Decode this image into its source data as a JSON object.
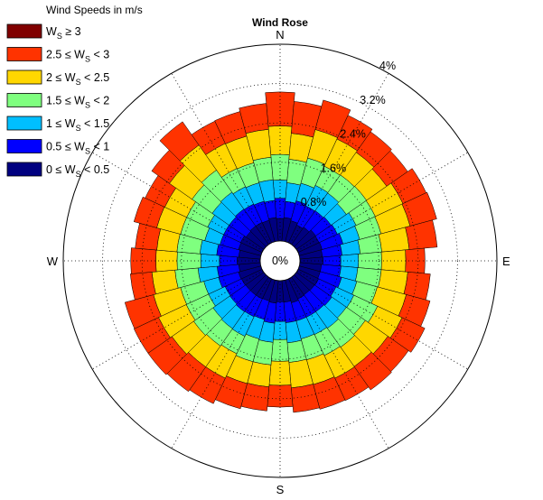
{
  "chart_data": {
    "type": "polar-stacked-bar",
    "title": "Wind Rose",
    "legend_title": "Wind Speeds in m/s",
    "legend_position": "top-left",
    "grid": true,
    "directions_label": [
      "N",
      "E",
      "S",
      "W"
    ],
    "ring_labels": [
      "0%",
      "0.8%",
      "1.6%",
      "2.4%",
      "3.2%",
      "4%"
    ],
    "ring_values": [
      0,
      0.8,
      1.6,
      2.4,
      3.2,
      4.0
    ],
    "r_max": 4.0,
    "sector_count": 36,
    "bins": [
      {
        "parts": [
          "0 ≤ W",
          "S",
          " < 0.5"
        ],
        "color": "#000080"
      },
      {
        "parts": [
          "0.5 ≤ W",
          "S",
          " < 1"
        ],
        "color": "#0000FF"
      },
      {
        "parts": [
          "1 ≤ W",
          "S",
          " < 1.5"
        ],
        "color": "#00BFFF"
      },
      {
        "parts": [
          "1.5 ≤ W",
          "S",
          " < 2"
        ],
        "color": "#7FFF7F"
      },
      {
        "parts": [
          "2 ≤ W",
          "S",
          " < 2.5"
        ],
        "color": "#FFD700"
      },
      {
        "parts": [
          "2.5 ≤ W",
          "S",
          " < 3"
        ],
        "color": "#FF3300"
      },
      {
        "parts": [
          "W",
          "S",
          " ≥ 3"
        ],
        "color": "#800000"
      }
    ],
    "sectors": [
      {
        "direction": 0,
        "cumulative": [
          0.46,
          0.87,
          1.24,
          1.76,
          2.34,
          3.03,
          3.03
        ]
      },
      {
        "direction": 10,
        "cumulative": [
          0.48,
          0.81,
          1.19,
          1.67,
          2.2,
          2.85,
          2.85
        ]
      },
      {
        "direction": 20,
        "cumulative": [
          0.44,
          0.86,
          1.23,
          1.76,
          2.36,
          2.98,
          2.98
        ]
      },
      {
        "direction": 30,
        "cumulative": [
          0.4,
          0.83,
          1.29,
          1.72,
          2.33,
          2.86,
          2.86
        ]
      },
      {
        "direction": 40,
        "cumulative": [
          0.43,
          0.84,
          1.28,
          1.73,
          2.29,
          2.8,
          2.8
        ]
      },
      {
        "direction": 50,
        "cumulative": [
          0.48,
          0.86,
          1.24,
          1.74,
          2.24,
          2.76,
          2.76
        ]
      },
      {
        "direction": 60,
        "cumulative": [
          0.47,
          0.88,
          1.3,
          1.73,
          2.35,
          2.87,
          2.87
        ]
      },
      {
        "direction": 70,
        "cumulative": [
          0.48,
          0.92,
          1.27,
          1.72,
          2.33,
          2.89,
          2.89
        ]
      },
      {
        "direction": 80,
        "cumulative": [
          0.46,
          0.86,
          1.23,
          1.67,
          2.23,
          2.8,
          2.8
        ]
      },
      {
        "direction": 90,
        "cumulative": [
          0.47,
          0.83,
          1.19,
          1.66,
          2.15,
          2.54,
          2.54
        ]
      },
      {
        "direction": 100,
        "cumulative": [
          0.44,
          0.84,
          1.18,
          1.66,
          2.2,
          2.66,
          2.66
        ]
      },
      {
        "direction": 110,
        "cumulative": [
          0.44,
          0.89,
          1.21,
          1.64,
          2.25,
          2.75,
          2.75
        ]
      },
      {
        "direction": 120,
        "cumulative": [
          0.46,
          0.85,
          1.25,
          1.78,
          2.33,
          2.84,
          2.84
        ]
      },
      {
        "direction": 130,
        "cumulative": [
          0.45,
          0.88,
          1.24,
          1.71,
          2.27,
          2.78,
          2.78
        ]
      },
      {
        "direction": 140,
        "cumulative": [
          0.44,
          0.86,
          1.27,
          1.74,
          2.22,
          2.8,
          2.8
        ]
      },
      {
        "direction": 150,
        "cumulative": [
          0.45,
          0.86,
          1.25,
          1.72,
          2.23,
          2.73,
          2.73
        ]
      },
      {
        "direction": 160,
        "cumulative": [
          0.48,
          0.86,
          1.24,
          1.68,
          2.2,
          2.72,
          2.72
        ]
      },
      {
        "direction": 170,
        "cumulative": [
          0.44,
          0.86,
          1.27,
          1.67,
          2.19,
          2.69,
          2.69
        ]
      },
      {
        "direction": 180,
        "cumulative": [
          0.43,
          0.83,
          1.2,
          1.64,
          2.13,
          2.57,
          2.57
        ]
      },
      {
        "direction": 190,
        "cumulative": [
          0.46,
          0.87,
          1.26,
          1.72,
          2.17,
          2.66,
          2.66
        ]
      },
      {
        "direction": 200,
        "cumulative": [
          0.44,
          0.83,
          1.24,
          1.72,
          2.18,
          2.71,
          2.71
        ]
      },
      {
        "direction": 210,
        "cumulative": [
          0.45,
          0.85,
          1.29,
          1.68,
          2.23,
          2.8,
          2.8
        ]
      },
      {
        "direction": 220,
        "cumulative": [
          0.45,
          0.86,
          1.28,
          1.71,
          2.23,
          2.84,
          2.84
        ]
      },
      {
        "direction": 230,
        "cumulative": [
          0.45,
          0.84,
          1.26,
          1.74,
          2.28,
          2.87,
          2.87
        ]
      },
      {
        "direction": 240,
        "cumulative": [
          0.46,
          0.83,
          1.2,
          1.7,
          2.32,
          2.87,
          2.87
        ]
      },
      {
        "direction": 250,
        "cumulative": [
          0.47,
          0.89,
          1.2,
          1.69,
          2.26,
          2.86,
          2.86
        ]
      },
      {
        "direction": 260,
        "cumulative": [
          0.44,
          0.88,
          1.27,
          1.74,
          2.21,
          2.65,
          2.65
        ]
      },
      {
        "direction": 270,
        "cumulative": [
          0.47,
          0.83,
          1.21,
          1.69,
          2.12,
          2.63,
          2.63
        ]
      },
      {
        "direction": 280,
        "cumulative": [
          0.44,
          0.89,
          1.23,
          1.7,
          2.11,
          2.55,
          2.55
        ]
      },
      {
        "direction": 290,
        "cumulative": [
          0.47,
          0.86,
          1.18,
          1.69,
          2.19,
          2.67,
          2.67
        ]
      },
      {
        "direction": 300,
        "cumulative": [
          0.48,
          0.86,
          1.22,
          1.69,
          2.18,
          2.62,
          2.62
        ]
      },
      {
        "direction": 310,
        "cumulative": [
          0.44,
          0.86,
          1.28,
          1.78,
          2.34,
          2.78,
          2.78
        ]
      },
      {
        "direction": 320,
        "cumulative": [
          0.46,
          0.88,
          1.3,
          1.85,
          2.47,
          3.05,
          3.05
        ]
      },
      {
        "direction": 330,
        "cumulative": [
          0.46,
          0.87,
          1.26,
          1.67,
          2.23,
          2.73,
          2.73
        ]
      },
      {
        "direction": 340,
        "cumulative": [
          0.45,
          0.85,
          1.24,
          1.66,
          2.22,
          2.74,
          2.74
        ]
      },
      {
        "direction": 350,
        "cumulative": [
          0.48,
          0.83,
          1.25,
          1.71,
          2.28,
          2.81,
          2.81
        ]
      }
    ]
  }
}
